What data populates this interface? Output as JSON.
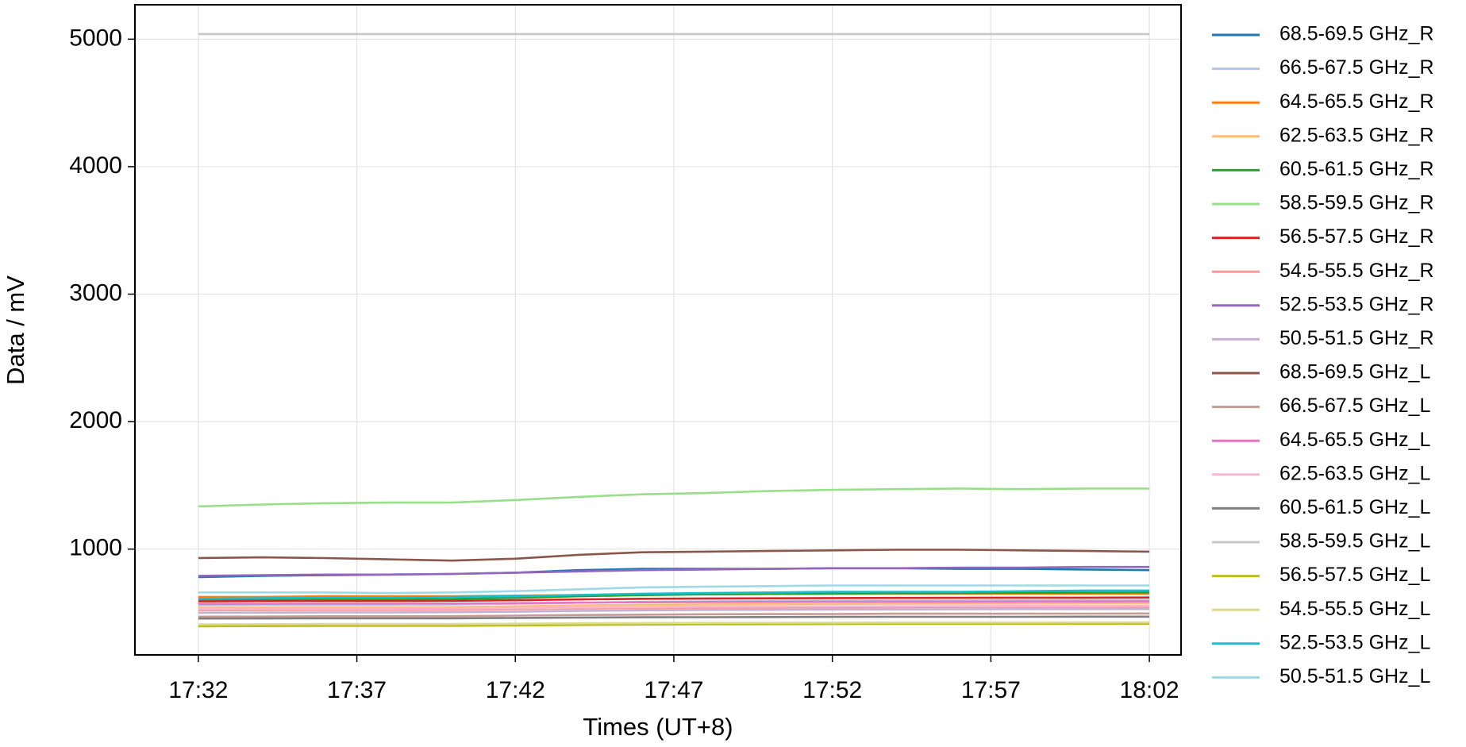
{
  "chart_data": {
    "type": "line",
    "xlabel": "Times (UT+8)",
    "ylabel": "Data / mV",
    "x": [
      "17:32",
      "17:34",
      "17:36",
      "17:38",
      "17:40",
      "17:42",
      "17:44",
      "17:46",
      "17:48",
      "17:50",
      "17:52",
      "17:54",
      "17:56",
      "17:58",
      "18:00",
      "18:02"
    ],
    "xlim": [
      "17:30",
      "18:03"
    ],
    "xticks": [
      "17:32",
      "17:37",
      "17:42",
      "17:47",
      "17:52",
      "17:57",
      "18:02"
    ],
    "ylim": [
      170,
      5270
    ],
    "yticks": [
      1000,
      2000,
      3000,
      4000,
      5000
    ],
    "grid": true,
    "legend": "outside-right",
    "series": [
      {
        "name": "68.5-69.5 GHz_R",
        "color": "#1f77b4",
        "values": [
          780,
          790,
          795,
          800,
          805,
          815,
          835,
          845,
          845,
          845,
          850,
          850,
          845,
          845,
          840,
          835
        ]
      },
      {
        "name": "66.5-67.5 GHz_R",
        "color": "#aec7e8",
        "values": [
          560,
          562,
          564,
          564,
          566,
          572,
          580,
          586,
          590,
          592,
          594,
          596,
          597,
          598,
          599,
          600
        ]
      },
      {
        "name": "64.5-65.5 GHz_R",
        "color": "#ff7f0e",
        "values": [
          625,
          625,
          630,
          630,
          630,
          635,
          640,
          645,
          645,
          648,
          650,
          650,
          650,
          650,
          650,
          650
        ]
      },
      {
        "name": "62.5-63.5 GHz_R",
        "color": "#ffbb78",
        "values": [
          540,
          542,
          544,
          544,
          545,
          551,
          558,
          563,
          566,
          568,
          570,
          572,
          572,
          573,
          574,
          575
        ]
      },
      {
        "name": "60.5-61.5 GHz_R",
        "color": "#2ca02c",
        "values": [
          600,
          603,
          606,
          606,
          609,
          618,
          630,
          639,
          645,
          648,
          651,
          654,
          655,
          657,
          658,
          660
        ]
      },
      {
        "name": "58.5-59.5 GHz_R",
        "color": "#98df8a",
        "values": [
          1335,
          1350,
          1360,
          1365,
          1365,
          1385,
          1410,
          1430,
          1440,
          1455,
          1465,
          1470,
          1475,
          1470,
          1475,
          1475
        ]
      },
      {
        "name": "56.5-57.5 GHz_R",
        "color": "#d62728",
        "values": [
          590,
          592,
          593,
          593,
          595,
          599,
          605,
          610,
          613,
          614,
          616,
          617,
          618,
          619,
          619,
          620
        ]
      },
      {
        "name": "54.5-55.5 GHz_R",
        "color": "#ff9896",
        "values": [
          520,
          521,
          523,
          523,
          524,
          528,
          533,
          536,
          539,
          540,
          541,
          543,
          543,
          544,
          544,
          545
        ]
      },
      {
        "name": "52.5-53.5 GHz_R",
        "color": "#9467bd",
        "values": [
          790,
          795,
          800,
          800,
          805,
          815,
          825,
          835,
          840,
          845,
          850,
          850,
          855,
          855,
          860,
          860
        ]
      },
      {
        "name": "50.5-51.5 GHz_R",
        "color": "#c5b0d5",
        "values": [
          500,
          502,
          503,
          503,
          505,
          509,
          515,
          520,
          523,
          524,
          526,
          527,
          528,
          529,
          529,
          530
        ]
      },
      {
        "name": "68.5-69.5 GHz_L",
        "color": "#8c564b",
        "values": [
          930,
          935,
          930,
          920,
          910,
          925,
          955,
          975,
          980,
          985,
          990,
          995,
          995,
          990,
          985,
          980
        ]
      },
      {
        "name": "66.5-67.5 GHz_L",
        "color": "#c49c94",
        "values": [
          470,
          471,
          473,
          473,
          474,
          478,
          483,
          486,
          489,
          490,
          491,
          493,
          493,
          494,
          494,
          495
        ]
      },
      {
        "name": "64.5-65.5 GHz_L",
        "color": "#e377c2",
        "values": [
          570,
          571,
          572,
          572,
          573,
          576,
          580,
          583,
          585,
          586,
          587,
          588,
          588,
          589,
          589,
          590
        ]
      },
      {
        "name": "62.5-63.5 GHz_L",
        "color": "#f7b6d2",
        "values": [
          530,
          531,
          533,
          533,
          534,
          538,
          543,
          546,
          549,
          550,
          551,
          553,
          553,
          554,
          554,
          555
        ]
      },
      {
        "name": "60.5-61.5 GHz_L",
        "color": "#7f7f7f",
        "values": [
          455,
          456,
          457,
          457,
          457,
          460,
          463,
          465,
          466,
          467,
          468,
          469,
          469,
          469,
          470,
          470
        ]
      },
      {
        "name": "58.5-59.5 GHz_L",
        "color": "#c7c7c7",
        "values": [
          5040,
          5040,
          5040,
          5040,
          5040,
          5040,
          5040,
          5040,
          5040,
          5040,
          5040,
          5040,
          5040,
          5040,
          5040,
          5040
        ]
      },
      {
        "name": "56.5-57.5 GHz_L",
        "color": "#bcbd22",
        "values": [
          395,
          396,
          397,
          397,
          398,
          401,
          405,
          408,
          410,
          411,
          412,
          413,
          413,
          414,
          414,
          415
        ]
      },
      {
        "name": "54.5-55.5 GHz_L",
        "color": "#dbdb8d",
        "values": [
          410,
          411,
          412,
          412,
          412,
          415,
          418,
          420,
          421,
          422,
          423,
          424,
          424,
          424,
          425,
          425
        ]
      },
      {
        "name": "52.5-53.5 GHz_L",
        "color": "#17becf",
        "values": [
          610,
          615,
          620,
          620,
          625,
          630,
          640,
          650,
          655,
          660,
          665,
          665,
          665,
          670,
          675,
          675
        ]
      },
      {
        "name": "50.5-51.5 GHz_L",
        "color": "#9edae5",
        "values": [
          660,
          660,
          660,
          655,
          660,
          670,
          685,
          700,
          705,
          710,
          715,
          715,
          715,
          715,
          715,
          715
        ]
      }
    ]
  }
}
